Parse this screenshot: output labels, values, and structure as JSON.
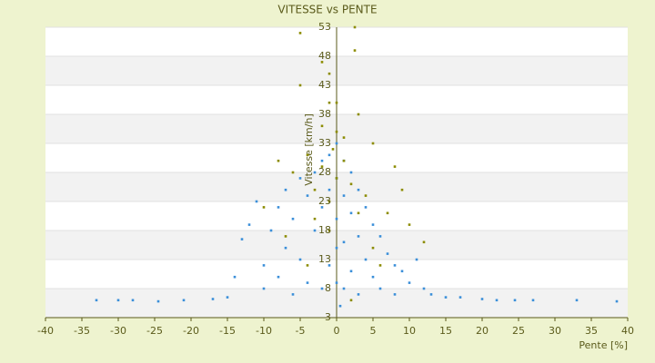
{
  "chart_data": {
    "type": "scatter",
    "title": "VITESSE vs PENTE",
    "xlabel": "Pente [%]",
    "ylabel": "Vitesse [km/h]",
    "xlim": [
      -40,
      40
    ],
    "xticks": [
      -40,
      -35,
      -30,
      -25,
      -20,
      -15,
      -10,
      -5,
      0,
      5,
      10,
      15,
      20,
      25,
      30,
      35,
      40
    ],
    "ylim": [
      3,
      53
    ],
    "yticks": [
      3,
      8,
      13,
      18,
      23,
      28,
      33,
      38,
      43,
      48,
      53
    ],
    "grid": true,
    "series": [
      {
        "color": "#3b8fd9",
        "x": [
          -33,
          -30,
          -28,
          -24.5,
          -21,
          -17,
          -15,
          -14,
          -13,
          -12,
          -11,
          -10,
          -10,
          -9,
          -8,
          -8,
          -7,
          -7,
          -6,
          -6,
          -5,
          -5,
          -4,
          -4,
          -3,
          -3,
          -2,
          -2,
          -2,
          -1,
          -1,
          -1,
          0,
          0,
          0,
          0,
          0,
          0.5,
          1,
          1,
          1,
          1,
          2,
          2,
          2,
          3,
          3,
          3,
          4,
          4,
          5,
          5,
          6,
          6,
          7,
          8,
          8,
          9,
          10,
          11,
          12,
          13,
          15,
          17,
          20,
          22,
          24.5,
          27,
          33,
          38.5
        ],
        "values": [
          6,
          6,
          6,
          5.8,
          6,
          6.2,
          6.5,
          10,
          16.5,
          19,
          23,
          12,
          8,
          18,
          22,
          10,
          25,
          15,
          7,
          20,
          27,
          13,
          24,
          9,
          28,
          18,
          30,
          22,
          8,
          31,
          25,
          12,
          33,
          27,
          20,
          15,
          9,
          5,
          30,
          24,
          16,
          8,
          28,
          21,
          11,
          25,
          17,
          7,
          22,
          13,
          19,
          10,
          17,
          8,
          14,
          12,
          7,
          11,
          9,
          13,
          8,
          7,
          6.5,
          6.5,
          6.2,
          6,
          6,
          6,
          6,
          5.8
        ]
      },
      {
        "color": "#8c8c00",
        "x": [
          -5,
          2.5,
          2.5,
          -2,
          -1,
          -5,
          -1,
          3,
          -2,
          1,
          5,
          -4,
          -8,
          8,
          -6,
          0,
          2,
          -3,
          4,
          -10,
          7,
          -1,
          10,
          -7,
          12,
          0,
          1,
          -2,
          3,
          -4,
          6,
          2,
          -1,
          9,
          0,
          -0.5,
          5,
          -3
        ],
        "values": [
          52,
          53,
          49,
          47,
          45,
          43,
          40,
          38,
          36,
          34,
          33,
          31,
          30,
          29,
          28,
          27,
          26,
          25,
          24,
          22,
          21,
          23,
          19,
          17,
          16,
          35,
          30,
          29,
          21,
          12,
          12,
          6,
          18,
          25,
          40,
          32,
          15,
          20
        ]
      }
    ]
  }
}
